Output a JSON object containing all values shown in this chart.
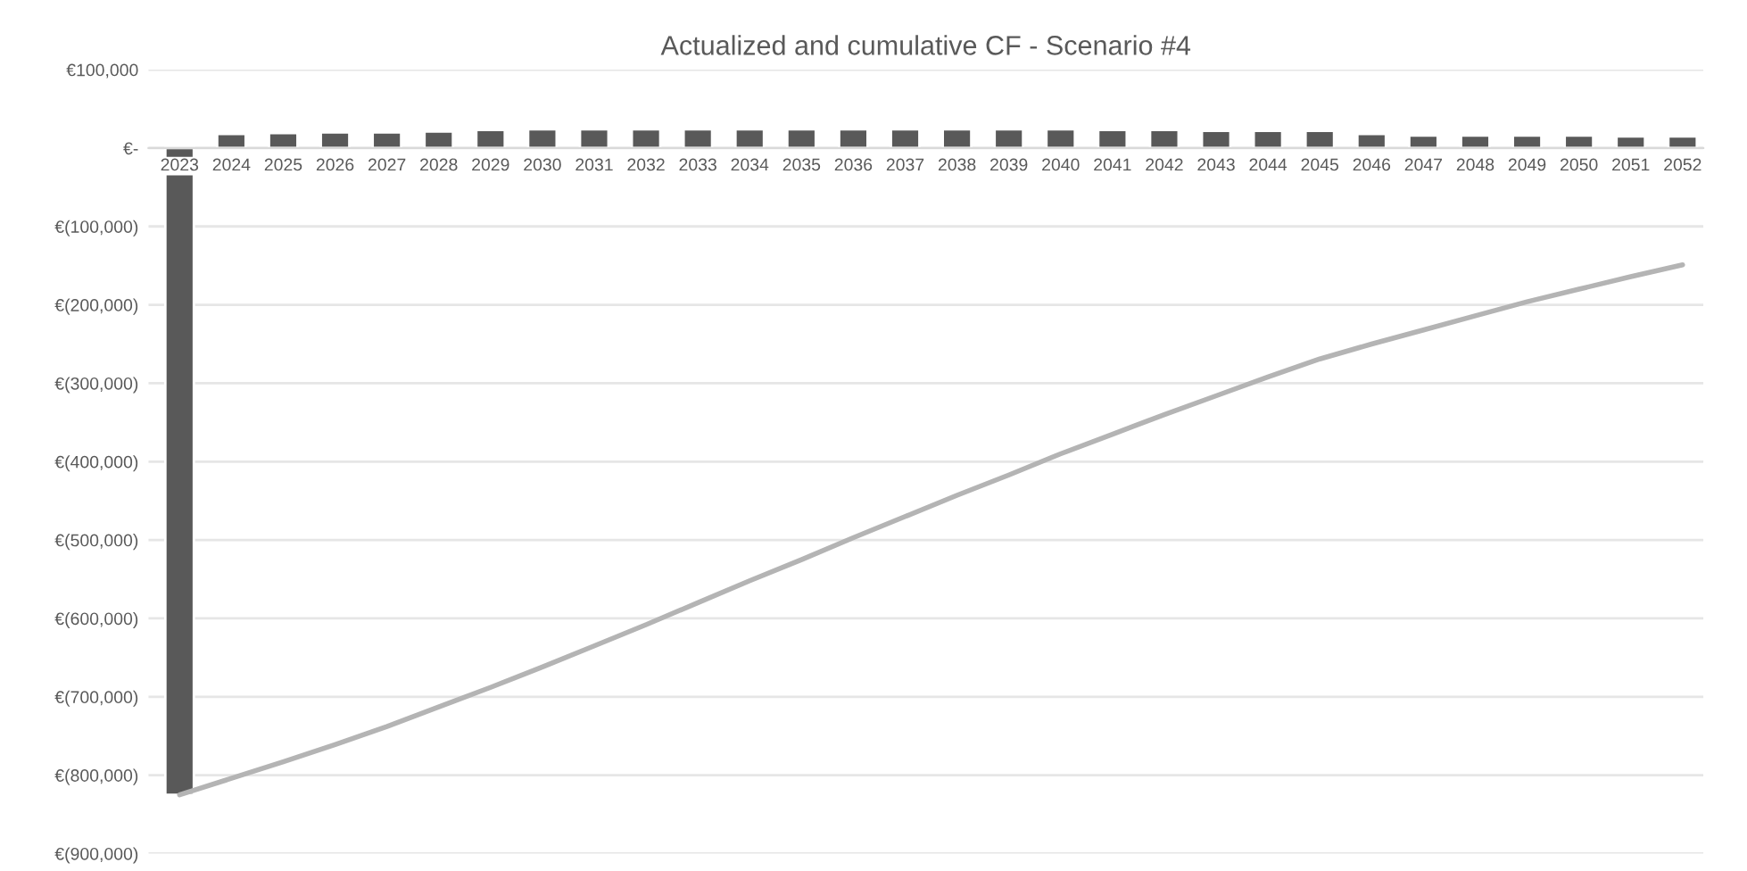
{
  "chart_data": {
    "type": "bar",
    "title": "Actualized and cumulative CF - Scenario #4",
    "categories": [
      "2023",
      "2024",
      "2025",
      "2026",
      "2027",
      "2028",
      "2029",
      "2030",
      "2031",
      "2032",
      "2033",
      "2034",
      "2035",
      "2036",
      "2037",
      "2038",
      "2039",
      "2040",
      "2041",
      "2042",
      "2043",
      "2044",
      "2045",
      "2046",
      "2047",
      "2048",
      "2049",
      "2050",
      "2051",
      "2052"
    ],
    "series": [
      {
        "color": "#595959",
        "values": [
          -825000,
          18000,
          19000,
          20000,
          20000,
          21000,
          23000,
          24000,
          24000,
          24000,
          24000,
          24000,
          24000,
          24000,
          24000,
          24000,
          24000,
          24000,
          23000,
          23000,
          22000,
          22000,
          22000,
          18000,
          16000,
          16000,
          16000,
          16000,
          15000,
          15000
        ]
      },
      {
        "type": "line",
        "color": "#b4b4b4",
        "values": [
          -825000,
          -804000,
          -783000,
          -761000,
          -738000,
          -713000,
          -688000,
          -662000,
          -635000,
          -608000,
          -580000,
          -552000,
          -525000,
          -497000,
          -470000,
          -443000,
          -417000,
          -390000,
          -365000,
          -340000,
          -316000,
          -292000,
          -269000,
          -250000,
          -232000,
          -214000,
          -196000,
          -180000,
          -164000,
          -149000
        ]
      }
    ],
    "ylim": [
      -900000,
      100000
    ],
    "yticks": [
      {
        "value": 100000,
        "label": "€100,000"
      },
      {
        "value": 0,
        "label": "€-"
      },
      {
        "value": -100000,
        "label": "€(100,000)"
      },
      {
        "value": -200000,
        "label": "€(200,000)"
      },
      {
        "value": -300000,
        "label": "€(300,000)"
      },
      {
        "value": -400000,
        "label": "€(400,000)"
      },
      {
        "value": -500000,
        "label": "€(500,000)"
      },
      {
        "value": -600000,
        "label": "€(600,000)"
      },
      {
        "value": -700000,
        "label": "€(700,000)"
      },
      {
        "value": -800000,
        "label": "€(800,000)"
      },
      {
        "value": -900000,
        "label": "€(900,000)"
      }
    ],
    "grid": "y",
    "legend": false
  }
}
